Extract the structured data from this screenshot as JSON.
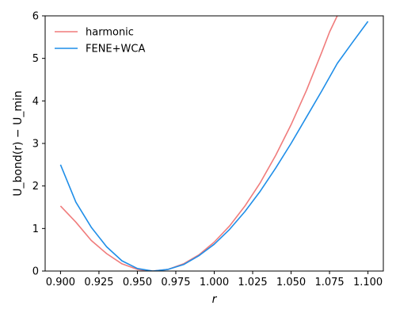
{
  "chart_data": {
    "type": "line",
    "xlabel": "r",
    "ylabel": "U_bond(r) − U_min",
    "xlim": [
      0.89,
      1.11
    ],
    "ylim": [
      0,
      6
    ],
    "xticks": [
      0.9,
      0.925,
      0.95,
      0.975,
      1.0,
      1.025,
      1.05,
      1.075,
      1.1
    ],
    "xtick_labels": [
      "0.900",
      "0.925",
      "0.950",
      "0.975",
      "1.000",
      "1.025",
      "1.050",
      "1.075",
      "1.100"
    ],
    "yticks": [
      0,
      1,
      2,
      3,
      4,
      5,
      6
    ],
    "ytick_labels": [
      "0",
      "1",
      "2",
      "3",
      "4",
      "5",
      "6"
    ],
    "grid": false,
    "legend_position": "top-left",
    "series": [
      {
        "name": "harmonic",
        "color": "#f07c7c",
        "x": [
          0.9,
          0.91,
          0.92,
          0.93,
          0.94,
          0.95,
          0.96,
          0.97,
          0.98,
          0.99,
          1.0,
          1.01,
          1.02,
          1.03,
          1.04,
          1.05,
          1.06,
          1.07,
          1.075,
          1.08
        ],
        "y": [
          1.53,
          1.15,
          0.72,
          0.41,
          0.17,
          0.04,
          0.0,
          0.04,
          0.17,
          0.38,
          0.68,
          1.06,
          1.53,
          2.08,
          2.72,
          3.44,
          4.25,
          5.15,
          5.62,
          6.0
        ]
      },
      {
        "name": "FENE+WCA",
        "color": "#1f8ee8",
        "x": [
          0.9,
          0.91,
          0.92,
          0.93,
          0.94,
          0.95,
          0.96,
          0.97,
          0.98,
          0.99,
          1.0,
          1.01,
          1.02,
          1.03,
          1.04,
          1.05,
          1.06,
          1.07,
          1.08,
          1.09,
          1.1
        ],
        "y": [
          2.5,
          1.62,
          1.03,
          0.57,
          0.24,
          0.06,
          0.0,
          0.04,
          0.15,
          0.36,
          0.63,
          0.98,
          1.4,
          1.88,
          2.42,
          3.0,
          3.62,
          4.24,
          4.88,
          5.38,
          5.87
        ]
      }
    ]
  }
}
